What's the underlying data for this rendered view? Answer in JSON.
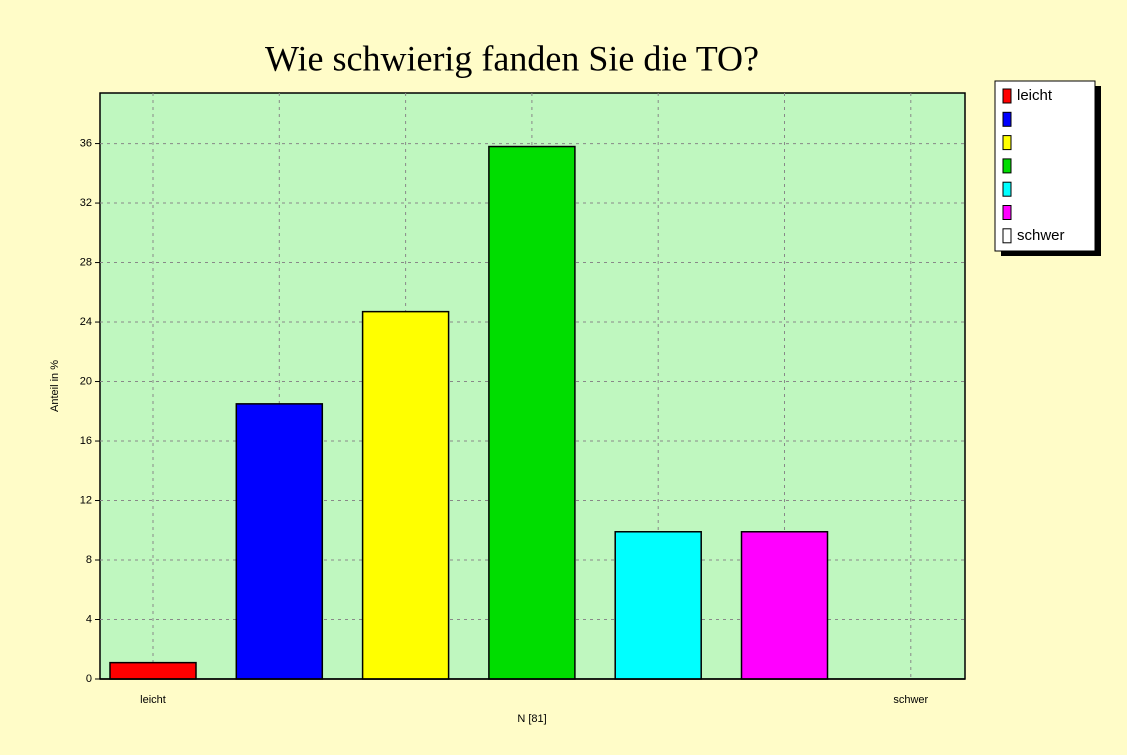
{
  "chart_data": {
    "type": "bar",
    "title": "Wie schwierig fanden Sie die TO?",
    "ylabel": "Anteil in %",
    "xlabel": "N [81]",
    "categories": [
      "leicht",
      null,
      null,
      null,
      null,
      null,
      "schwer"
    ],
    "values": [
      1.1,
      18.5,
      24.7,
      35.8,
      9.9,
      9.9,
      0
    ],
    "colors": [
      "#ff0000",
      "#0000ff",
      "#ffff00",
      "#00dd00",
      "#00ffff",
      "#ff00ff",
      "#ffffff"
    ],
    "ylim": [
      0,
      39.4
    ],
    "yticks": [
      0,
      4,
      8,
      12,
      16,
      20,
      24,
      28,
      32,
      36
    ],
    "grid": true,
    "legend": "right"
  }
}
